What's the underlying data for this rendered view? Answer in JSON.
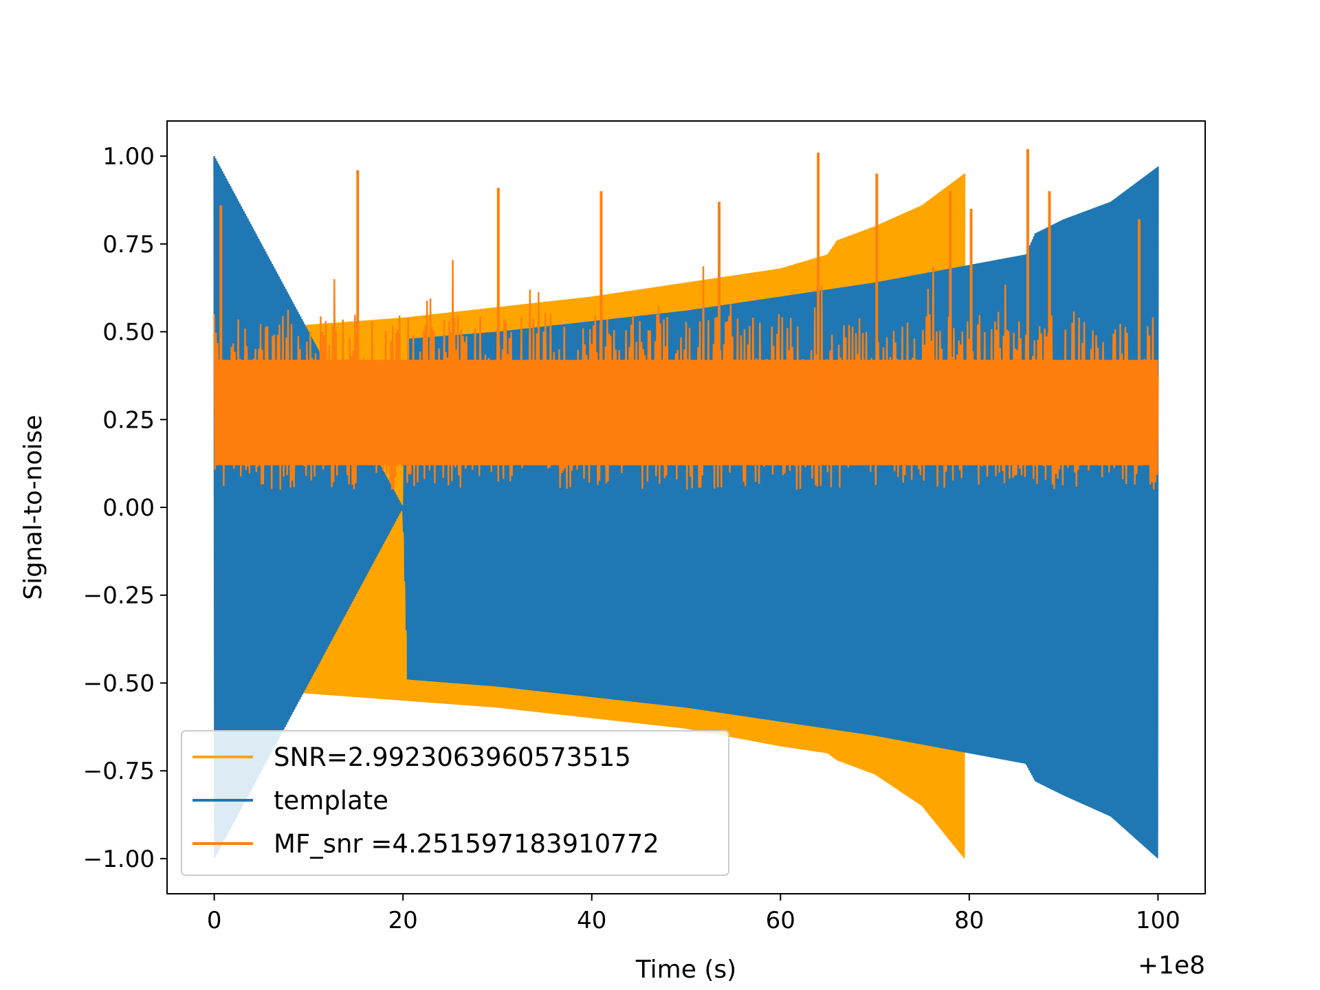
{
  "chart_data": {
    "type": "line",
    "xlabel": "Time (s)",
    "ylabel": "Signal-to-noise",
    "x_offset_label": "+1e8",
    "xlim": [
      -5,
      105
    ],
    "ylim": [
      -1.1,
      1.1
    ],
    "xticks": [
      0,
      20,
      40,
      60,
      80,
      100
    ],
    "yticks": [
      1.0,
      0.75,
      0.5,
      0.25,
      0.0,
      -0.25,
      -0.5,
      -0.75,
      -1.0
    ],
    "ytick_labels": [
      "1.00",
      "0.75",
      "0.50",
      "0.25",
      "0.00",
      "−0.25",
      "−0.50",
      "−0.75",
      "−1.00"
    ],
    "grid": false,
    "legend_position": "bottom-left",
    "series": [
      {
        "name": "SNR=2.9923063960573515",
        "color": "#ffa500",
        "x": [
          0,
          1.5,
          5,
          10,
          20,
          30,
          40,
          50,
          60,
          65,
          66,
          70,
          75,
          79.5
        ],
        "upper": [
          1.0,
          0.45,
          0.5,
          0.52,
          0.54,
          0.57,
          0.6,
          0.64,
          0.68,
          0.72,
          0.76,
          0.8,
          0.86,
          0.95
        ],
        "lower": [
          -1.0,
          -0.5,
          -0.52,
          -0.53,
          -0.55,
          -0.57,
          -0.6,
          -0.63,
          -0.68,
          -0.7,
          -0.72,
          -0.76,
          -0.85,
          -1.0
        ]
      },
      {
        "name": "template",
        "color": "#1f77b4",
        "x": [
          0,
          20,
          20.5,
          30,
          40,
          50,
          60,
          70,
          80,
          86,
          87,
          90,
          95,
          100
        ],
        "upper": [
          1.0,
          0.0,
          0.48,
          0.5,
          0.53,
          0.56,
          0.6,
          0.64,
          0.69,
          0.72,
          0.78,
          0.82,
          0.87,
          0.97
        ],
        "lower": [
          -1.0,
          0.0,
          -0.49,
          -0.51,
          -0.54,
          -0.57,
          -0.61,
          -0.65,
          -0.7,
          -0.73,
          -0.78,
          -0.82,
          -0.88,
          -1.0
        ]
      },
      {
        "name": " MF_snr =4.251597183910772",
        "color": "#ff7f0e",
        "x": [
          0,
          100
        ],
        "band": [
          0.05,
          0.55
        ],
        "peaks": [
          [
            0.7,
            0.86
          ],
          [
            15.2,
            0.96
          ],
          [
            30.1,
            0.91
          ],
          [
            41.0,
            0.9
          ],
          [
            53.5,
            0.87
          ],
          [
            64.0,
            1.01
          ],
          [
            70.2,
            0.95
          ],
          [
            78.0,
            0.9
          ],
          [
            80.2,
            0.85
          ],
          [
            86.2,
            1.02
          ],
          [
            88.5,
            0.9
          ],
          [
            98.0,
            0.82
          ]
        ]
      }
    ]
  }
}
